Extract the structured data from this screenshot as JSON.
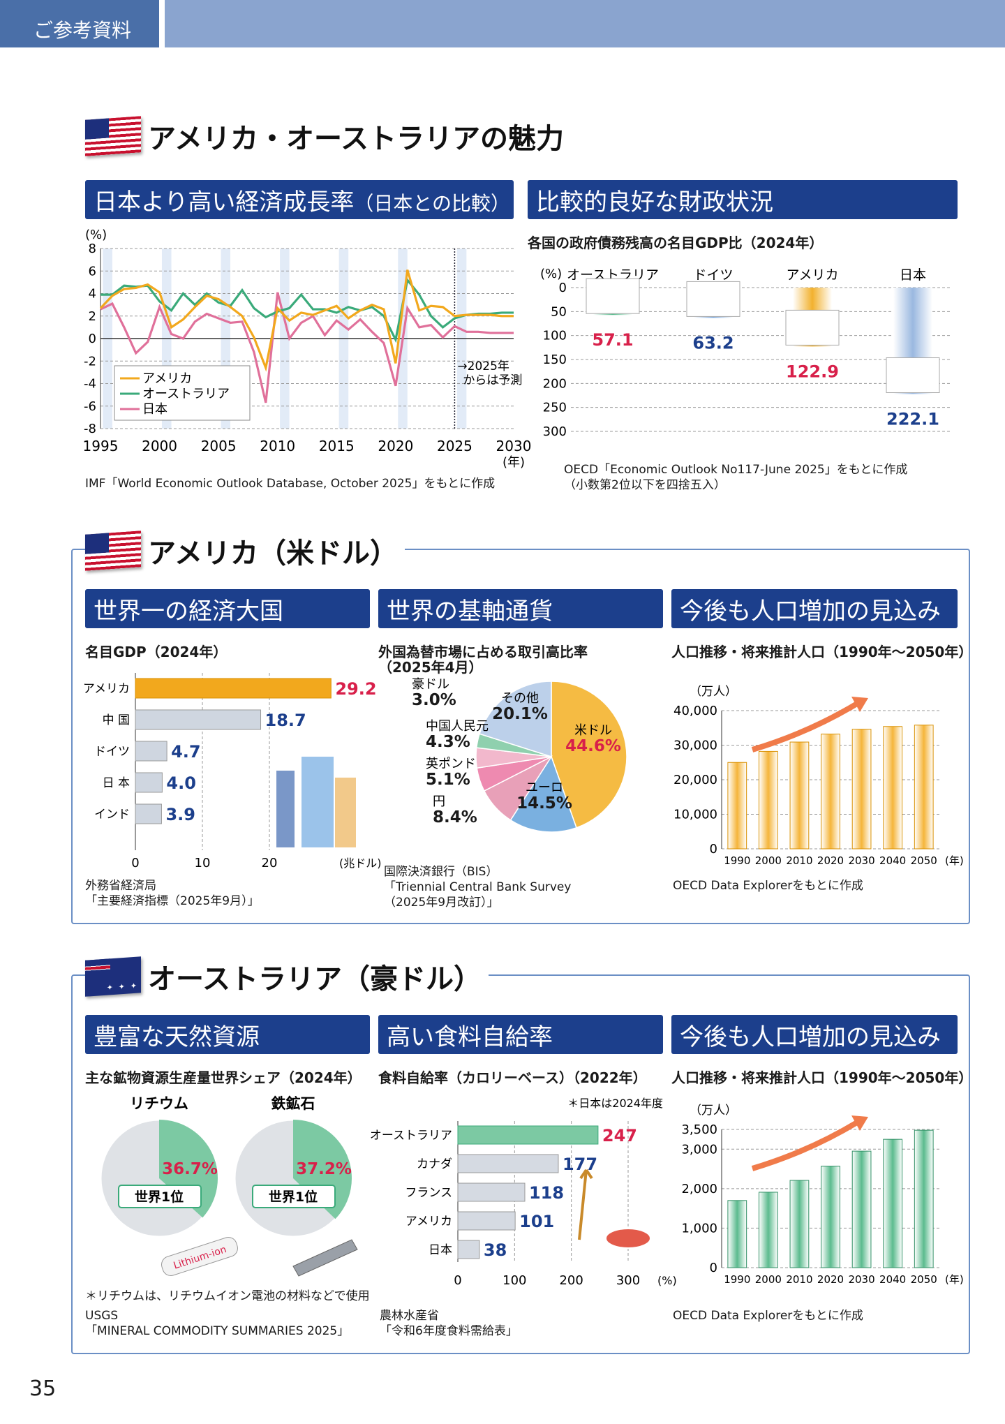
{
  "header": {
    "tab": "ご参考資料"
  },
  "main_title": "アメリカ・オーストラリアの魅力",
  "growth": {
    "band": "日本より高い経済成長率",
    "band_small": "（日本との比較）",
    "unit": "(%)",
    "forecast_note1": "2025年",
    "forecast_note2": "からは予測",
    "year_unit": "(年)",
    "source": "IMF「World Economic Outlook Database, October 2025」をもとに作成",
    "legend": [
      "アメリカ",
      "オーストラリア",
      "日本"
    ]
  },
  "fiscal": {
    "band": "比較的良好な財政状況",
    "subtitle": "各国の政府債務残高の名目GDP比（2024年）",
    "unit": "(%)",
    "source1": "OECD「Economic Outlook No117-June 2025」をもとに作成",
    "source2": "（小数第2位以下を四捨五入）"
  },
  "us": {
    "title": "アメリカ（米ドル）",
    "gdp": {
      "band": "世界一の経済大国",
      "subtitle": "名目GDP（2024年）",
      "unit": "(兆ドル)",
      "source1": "外務省経済局",
      "source2": "「主要経済指標（2025年9月）」"
    },
    "fx": {
      "band": "世界の基軸通貨",
      "subtitle1": "外国為替市場に占める取引高比率",
      "subtitle2": "（2025年4月）",
      "source1": "国際決済銀行（BIS）",
      "source2": "「Triennial Central Bank Survey",
      "source3": "（2025年9月改訂）」"
    },
    "pop": {
      "band": "今後も人口増加の見込み",
      "subtitle": "人口推移・将来推計人口（1990年〜2050年）",
      "unit": "（万人）",
      "year_unit": "(年)",
      "source": "OECD Data Explorerをもとに作成"
    }
  },
  "au": {
    "title": "オーストラリア（豪ドル）",
    "minerals": {
      "band": "豊富な天然資源",
      "subtitle": "主な鉱物資源生産量世界シェア（2024年）",
      "lithium_label": "リチウム",
      "lithium_share": "36.7%",
      "iron_label": "鉄鉱石",
      "iron_share": "37.2%",
      "rank": "世界1位",
      "battery_text": "Lithium-ion",
      "note": "＊リチウムは、リチウムイオン電池の材料などで使用",
      "source1": "USGS",
      "source2": "「MINERAL COMMODITY SUMMARIES 2025」"
    },
    "food": {
      "band": "高い食料自給率",
      "subtitle": "食料自給率（カロリーベース）（2022年）",
      "note": "＊日本は2024年度",
      "source1": "農林水産省",
      "source2": "「令和6年度食料需給表」"
    },
    "pop": {
      "band": "今後も人口増加の見込み",
      "subtitle": "人口推移・将来推計人口（1990年〜2050年）",
      "unit": "（万人）",
      "year_unit": "(年)",
      "source": "OECD Data Explorerをもとに作成"
    }
  },
  "page_number": "35",
  "colors": {
    "navy": "#1c3f8c",
    "us": "#f2a81d",
    "au": "#3aaa7a",
    "jp": "#e0709a",
    "red": "#d8204a",
    "blue": "#1c3f8c"
  },
  "chart_data": [
    {
      "id": "growth",
      "type": "line",
      "title": "日本より高い経済成長率",
      "ylabel": "(%)",
      "xlabel": "(年)",
      "ylim": [
        -8,
        8
      ],
      "xlim": [
        1995,
        2030
      ],
      "x": [
        1995,
        1996,
        1997,
        1998,
        1999,
        2000,
        2001,
        2002,
        2003,
        2004,
        2005,
        2006,
        2007,
        2008,
        2009,
        2010,
        2011,
        2012,
        2013,
        2014,
        2015,
        2016,
        2017,
        2018,
        2019,
        2020,
        2021,
        2022,
        2023,
        2024,
        2025,
        2026,
        2027,
        2028,
        2029,
        2030
      ],
      "xticks": [
        1995,
        2000,
        2005,
        2010,
        2015,
        2020,
        2025,
        2030
      ],
      "yticks": [
        8,
        6,
        4,
        2,
        0,
        -2,
        -4,
        -6,
        -8
      ],
      "series": [
        {
          "name": "アメリカ",
          "values": [
            2.7,
            3.8,
            4.4,
            4.5,
            4.8,
            4.1,
            1.0,
            1.7,
            2.8,
            3.8,
            3.5,
            2.8,
            2.0,
            0.1,
            -2.6,
            2.7,
            1.6,
            2.3,
            2.1,
            2.5,
            2.9,
            1.8,
            2.5,
            3.0,
            2.6,
            -2.2,
            6.1,
            2.5,
            2.9,
            2.8,
            2.0,
            2.1,
            2.1,
            2.1,
            2.0,
            2.0
          ]
        },
        {
          "name": "オーストラリア",
          "values": [
            3.9,
            3.9,
            4.7,
            4.6,
            4.7,
            3.3,
            2.5,
            4.0,
            3.0,
            4.0,
            3.2,
            2.9,
            4.3,
            2.7,
            1.9,
            2.4,
            2.7,
            3.9,
            2.6,
            2.6,
            2.3,
            2.8,
            2.5,
            2.8,
            2.0,
            -0.1,
            5.2,
            3.9,
            2.0,
            1.0,
            1.8,
            2.1,
            2.2,
            2.2,
            2.3,
            2.3
          ]
        },
        {
          "name": "日本",
          "values": [
            2.6,
            3.1,
            1.0,
            -1.3,
            -0.3,
            2.8,
            0.4,
            0.0,
            1.5,
            2.2,
            1.8,
            1.4,
            1.5,
            -1.2,
            -5.7,
            4.1,
            0.0,
            1.4,
            2.0,
            0.3,
            1.6,
            0.8,
            1.7,
            0.6,
            -0.4,
            -4.2,
            2.7,
            1.0,
            1.2,
            0.1,
            1.1,
            0.6,
            0.6,
            0.5,
            0.5,
            0.5
          ]
        }
      ],
      "legend_position": "bottom-left",
      "forecast_from": 2025
    },
    {
      "id": "fiscal",
      "type": "bar",
      "title": "各国の政府債務残高の名目GDP比（2024年）",
      "ylabel": "(%)",
      "ylim": [
        0,
        300
      ],
      "yticks": [
        0,
        50,
        100,
        150,
        200,
        250,
        300
      ],
      "categories": [
        "オーストラリア",
        "ドイツ",
        "アメリカ",
        "日本"
      ],
      "values": [
        57.1,
        63.2,
        122.9,
        222.1
      ],
      "labels": [
        "57.1",
        "63.2",
        "122.9",
        "222.1"
      ]
    },
    {
      "id": "gdp",
      "type": "bar",
      "title": "名目GDP（2024年）",
      "xlabel": "(兆ドル)",
      "xlim": [
        0,
        30
      ],
      "xticks": [
        0,
        10,
        20
      ],
      "categories": [
        "アメリカ",
        "中 国",
        "ドイツ",
        "日 本",
        "インド"
      ],
      "values": [
        29.2,
        18.7,
        4.7,
        4.0,
        3.9
      ],
      "labels": [
        "29.2",
        "18.7",
        "4.7",
        "4.0",
        "3.9"
      ]
    },
    {
      "id": "fx",
      "type": "pie",
      "title": "外国為替市場に占める取引高比率（2025年4月）",
      "categories": [
        "米ドル",
        "ユーロ",
        "円",
        "英ポンド",
        "中国人民元",
        "豪ドル",
        "その他"
      ],
      "values": [
        44.6,
        14.5,
        8.4,
        5.1,
        4.3,
        3.0,
        20.1
      ],
      "labels": [
        "44.6%",
        "14.5%",
        "8.4%",
        "5.1%",
        "4.3%",
        "3.0%",
        "20.1%"
      ],
      "colors": [
        "#f5bb43",
        "#7ab0e0",
        "#e8a0b8",
        "#ee8ab0",
        "#f2b8cc",
        "#8fd0ae",
        "#bcd0ea"
      ]
    },
    {
      "id": "us_pop",
      "type": "bar",
      "title": "人口推移・将来推計人口（1990年〜2050年）",
      "ylabel": "（万人）",
      "xlabel": "(年)",
      "ylim": [
        0,
        40000
      ],
      "yticks": [
        0,
        10000,
        20000,
        30000,
        40000
      ],
      "ytick_labels": [
        "0",
        "10,000",
        "20,000",
        "30,000",
        "40,000"
      ],
      "categories": [
        "1990",
        "2000",
        "2010",
        "2020",
        "2030",
        "2040",
        "2050"
      ],
      "values": [
        25000,
        28200,
        30900,
        33200,
        34600,
        35400,
        35800
      ]
    },
    {
      "id": "minerals",
      "type": "pie",
      "title": "主な鉱物資源生産量世界シェア（2024年）",
      "series": [
        {
          "name": "リチウム",
          "values": [
            36.7,
            63.3
          ]
        },
        {
          "name": "鉄鉱石",
          "values": [
            37.2,
            62.8
          ]
        }
      ]
    },
    {
      "id": "food",
      "type": "bar",
      "title": "食料自給率（カロリーベース）（2022年）",
      "xlabel": "(%)",
      "xlim": [
        0,
        300
      ],
      "xticks": [
        0,
        100,
        200,
        300
      ],
      "categories": [
        "オーストラリア",
        "カナダ",
        "フランス",
        "アメリカ",
        "日本"
      ],
      "values": [
        247,
        177,
        118,
        101,
        38
      ],
      "labels": [
        "247",
        "177",
        "118",
        "101",
        "38"
      ]
    },
    {
      "id": "au_pop",
      "type": "bar",
      "title": "人口推移・将来推計人口（1990年〜2050年）",
      "ylabel": "（万人）",
      "xlabel": "(年)",
      "ylim": [
        0,
        3500
      ],
      "yticks": [
        0,
        1000,
        2000,
        3000,
        3500
      ],
      "ytick_labels": [
        "0",
        "1,000",
        "2,000",
        "3,000",
        "3,500"
      ],
      "categories": [
        "1990",
        "2000",
        "2010",
        "2020",
        "2030",
        "2040",
        "2050"
      ],
      "values": [
        1700,
        1910,
        2210,
        2570,
        2950,
        3250,
        3480
      ]
    }
  ]
}
